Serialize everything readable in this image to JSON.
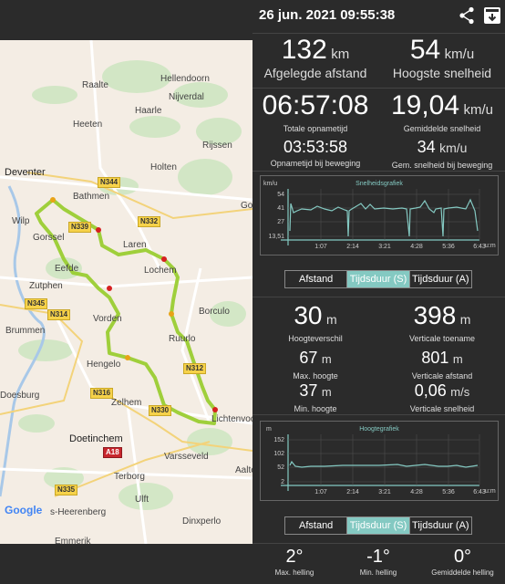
{
  "header": {
    "datetime": "26 jun. 2021 09:55:38"
  },
  "map": {
    "places": [
      "Raalte",
      "Hellendoorn",
      "Nijverdal",
      "Haarle",
      "Heeten",
      "Rijssen",
      "Holten",
      "Deventer",
      "Bathmen",
      "Wilp",
      "Gorssel",
      "Laren",
      "Eefde",
      "Lochem",
      "Zutphen",
      "Brummen",
      "Vorden",
      "Borculo",
      "Ruurlo",
      "Hengelo",
      "Doesburg",
      "Zelhem",
      "Lichtenvoo",
      "Doetinchem",
      "Varsseveld",
      "Terborg",
      "Aalte",
      "Ulft",
      "s-Heerenberg",
      "Dinxperlo",
      "Emmerik",
      "Goe"
    ],
    "roads": [
      "N344",
      "N339",
      "N332",
      "N345",
      "N314",
      "N312",
      "N316",
      "N330",
      "A18",
      "N335"
    ],
    "attribution": "Google"
  },
  "summary": {
    "distance": {
      "value": "132",
      "unit": "km",
      "label": "Afgelegde afstand"
    },
    "top_speed": {
      "value": "54",
      "unit": "km/u",
      "label": "Hoogste snelheid"
    },
    "total_time": {
      "value": "06:57:08",
      "label": "Totale opnametijd"
    },
    "avg_speed": {
      "value": "19,04",
      "unit": "km/u",
      "label": "Gemiddelde snelheid"
    },
    "moving_time": {
      "value": "03:53:58",
      "label": "Opnametijd bij beweging"
    },
    "moving_avg_speed": {
      "value": "34",
      "unit": "km/u",
      "label": "Gem. snelheid bij beweging"
    }
  },
  "speed_chart": {
    "title": "Snelheidsgrafiek",
    "yunit": "km/u",
    "xunit": "u:m",
    "yticks": [
      "54",
      "41",
      "27",
      "13,51"
    ],
    "xticks": [
      "1:07",
      "2:14",
      "3:21",
      "4:28",
      "5:36",
      "6:43"
    ],
    "tabs": [
      "Afstand",
      "Tijdsduur (S)",
      "Tijdsduur (A)"
    ],
    "active_tab": 1
  },
  "elevation": {
    "diff": {
      "value": "30",
      "unit": "m",
      "label": "Hoogteverschil"
    },
    "ascent": {
      "value": "398",
      "unit": "m",
      "label": "Verticale toename"
    },
    "max_height": {
      "value": "67",
      "unit": "m",
      "label": "Max. hoogte"
    },
    "vertical_distance": {
      "value": "801",
      "unit": "m",
      "label": "Verticale afstand"
    },
    "min_height": {
      "value": "37",
      "unit": "m",
      "label": "Min. hoogte"
    },
    "vertical_speed": {
      "value": "0,06",
      "unit": "m/s",
      "label": "Verticale snelheid"
    }
  },
  "elevation_chart": {
    "title": "Hoogtegrafiek",
    "yunit": "m",
    "xunit": "u:m",
    "yticks": [
      "152",
      "102",
      "52",
      "2"
    ],
    "xticks": [
      "1:07",
      "2:14",
      "3:21",
      "4:28",
      "5:36",
      "6:43"
    ],
    "tabs": [
      "Afstand",
      "Tijdsduur (S)",
      "Tijdsduur (A)"
    ],
    "active_tab": 1
  },
  "slope": {
    "max": {
      "value": "2°",
      "label": "Max. helling"
    },
    "min": {
      "value": "-1°",
      "label": "Min. helling"
    },
    "avg": {
      "value": "0°",
      "label": "Gemiddelde helling"
    }
  },
  "colors": {
    "accent": "#84c9c2",
    "route": "#9acd32",
    "route_hot": "#e8a317",
    "route_stop": "#d62020"
  }
}
